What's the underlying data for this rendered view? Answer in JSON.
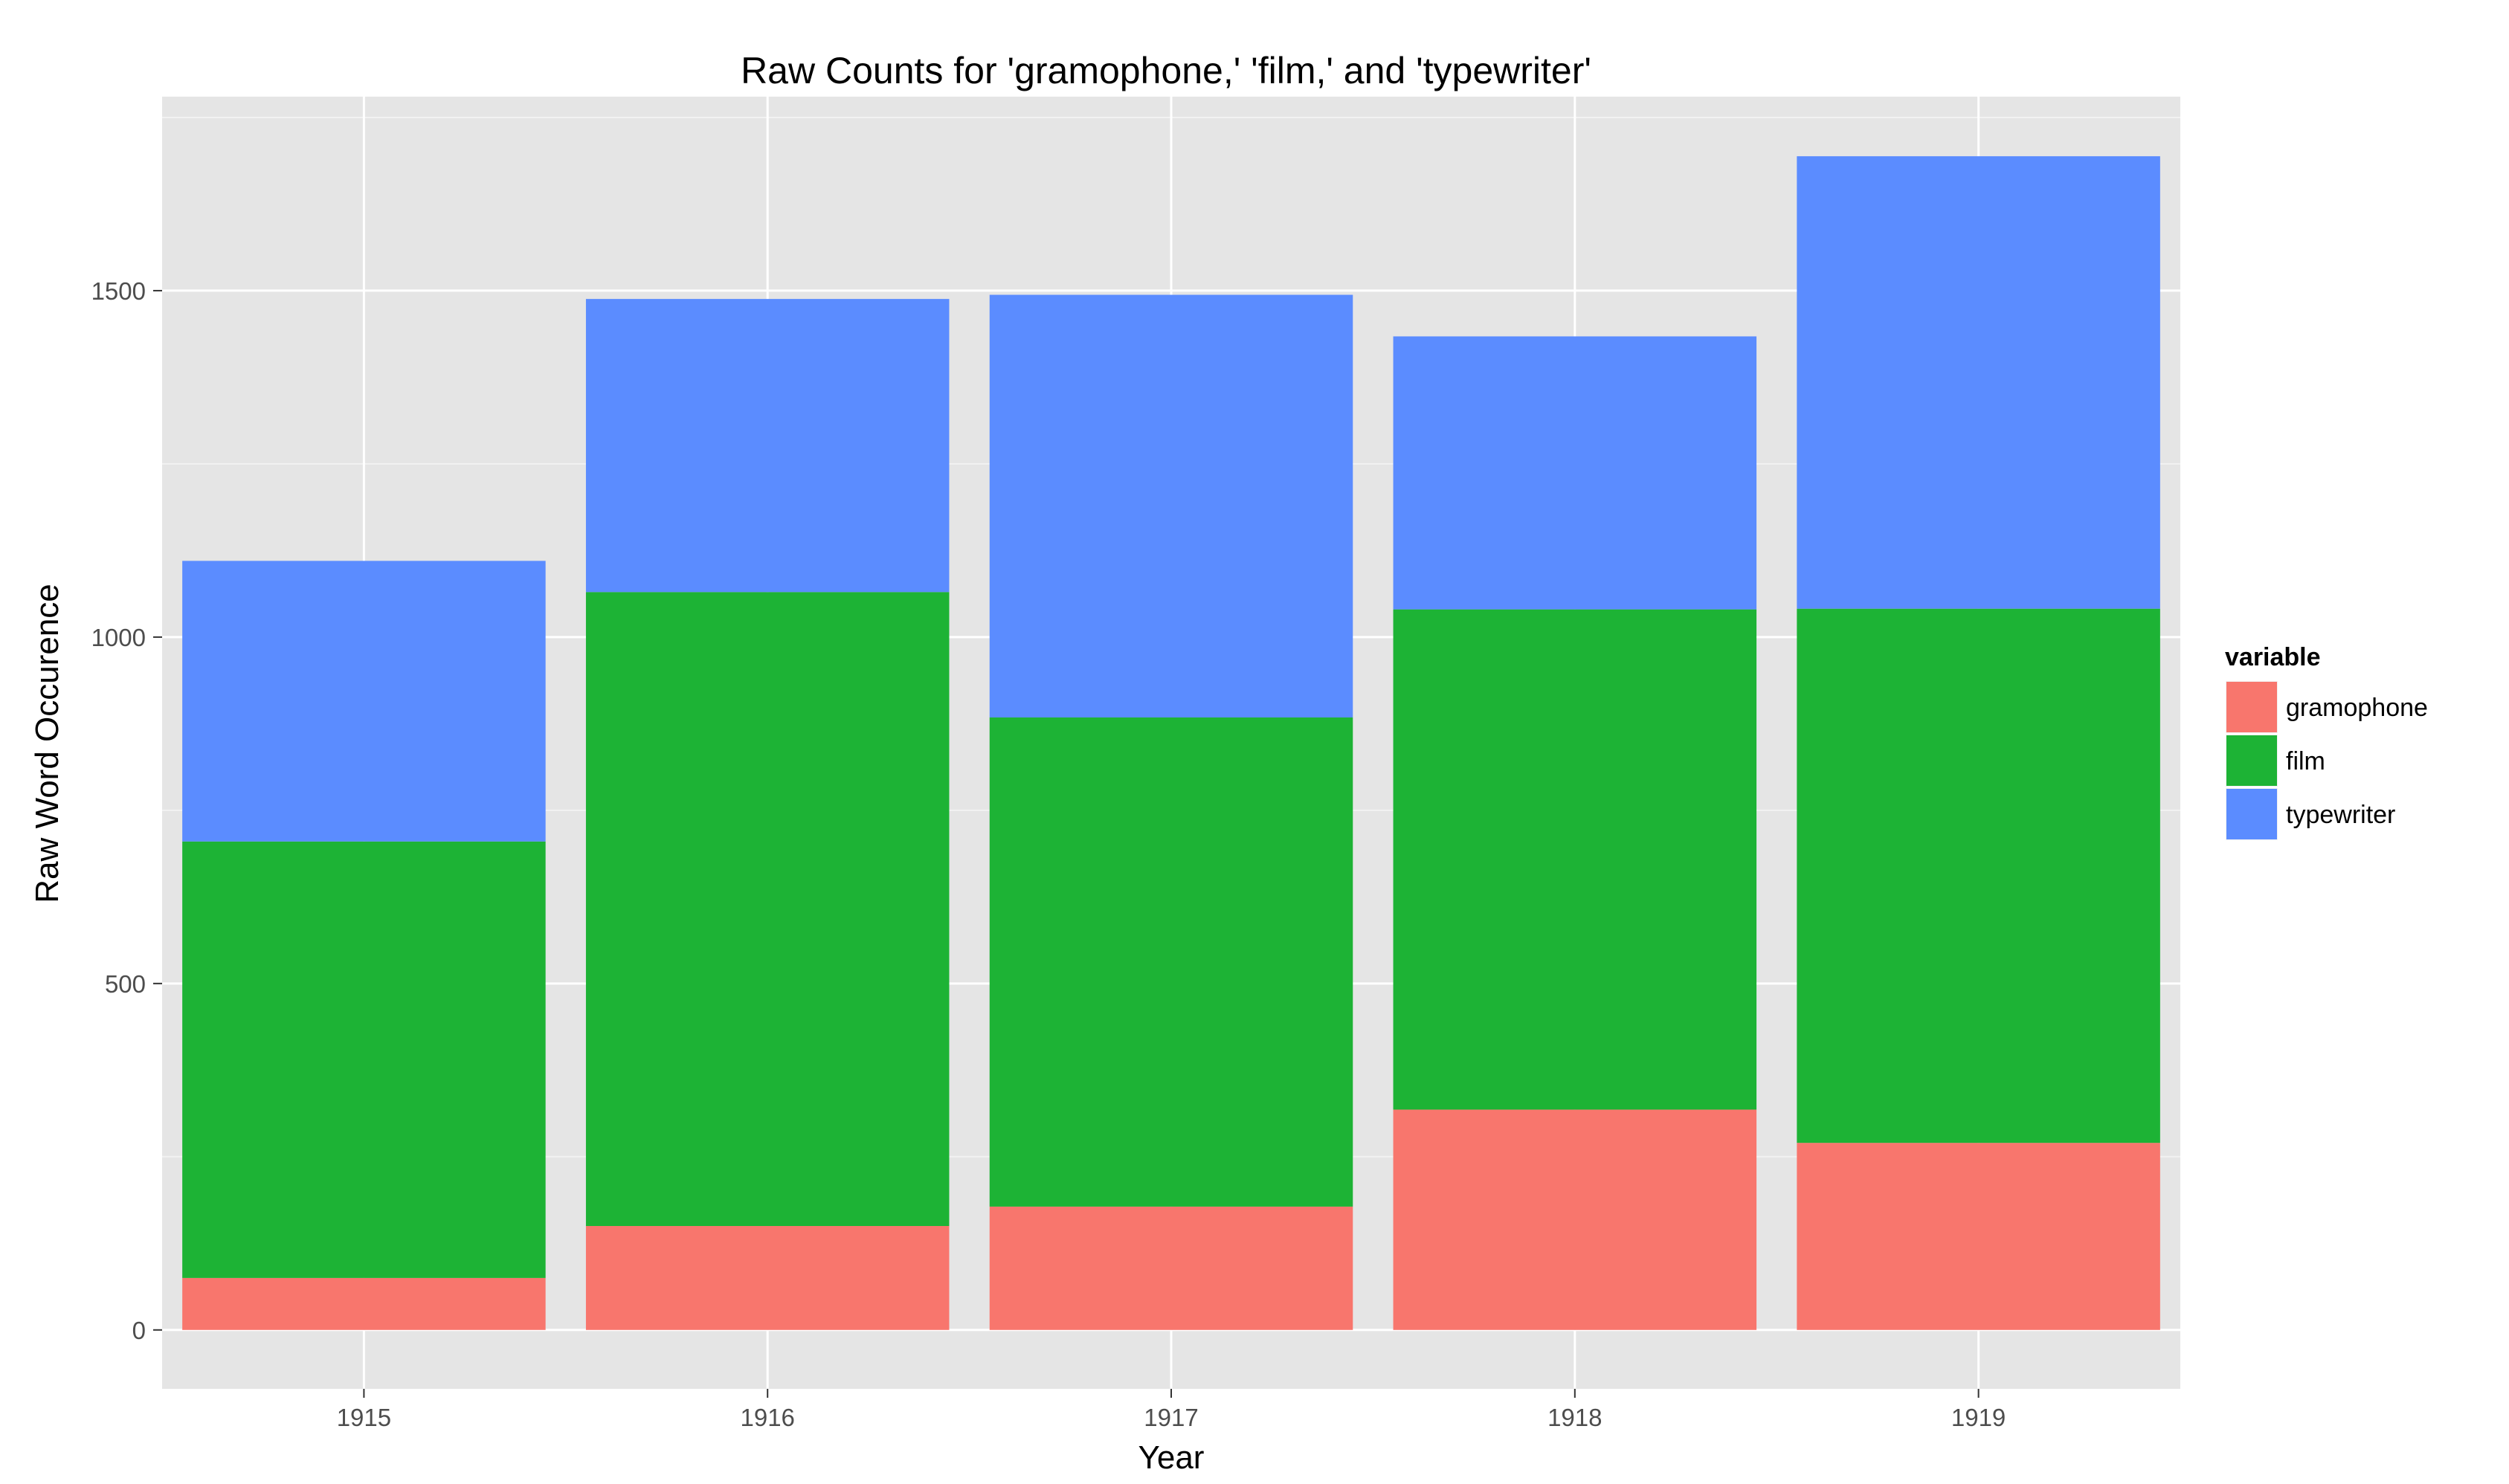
{
  "chart_data": {
    "type": "bar",
    "stacked": true,
    "title": "Raw Counts for 'gramophone,' 'film,' and 'typewriter'",
    "xlabel": "Year",
    "ylabel": "Raw Word Occurence",
    "categories": [
      "1915",
      "1916",
      "1917",
      "1918",
      "1919"
    ],
    "series": [
      {
        "name": "gramophone",
        "color": "#f8766d",
        "values": [
          75,
          150,
          178,
          318,
          270
        ]
      },
      {
        "name": "film",
        "color": "#1db335",
        "values": [
          630,
          915,
          706,
          722,
          771
        ]
      },
      {
        "name": "typewriter",
        "color": "#5b8cff",
        "values": [
          405,
          423,
          610,
          394,
          653
        ]
      }
    ],
    "ylim": [
      -85,
      1780
    ],
    "yticks": [
      0,
      500,
      1000,
      1500
    ],
    "yticks_minor": [
      250,
      750,
      1250,
      1750
    ],
    "grid": true,
    "legend": {
      "title": "variable",
      "position": "right"
    },
    "panel_background": "#e5e5e5",
    "grid_color": "#ffffff"
  }
}
